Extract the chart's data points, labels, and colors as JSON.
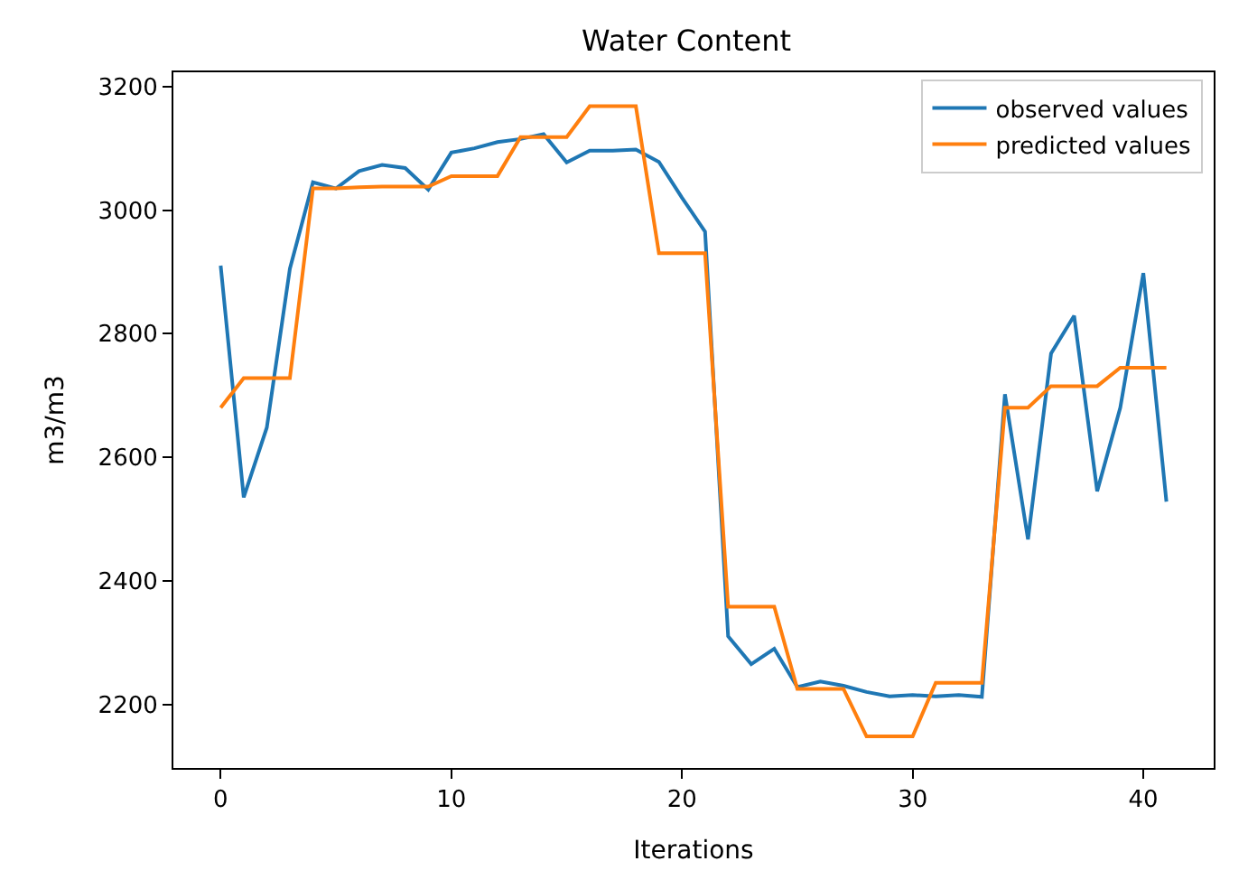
{
  "chart_data": {
    "type": "line",
    "title": "Water Content",
    "xlabel": "Iterations",
    "ylabel": "m3/m3",
    "x": [
      0,
      1,
      2,
      3,
      4,
      5,
      6,
      7,
      8,
      9,
      10,
      11,
      12,
      13,
      14,
      15,
      16,
      17,
      18,
      19,
      20,
      21,
      22,
      23,
      24,
      25,
      26,
      27,
      28,
      29,
      30,
      31,
      32,
      33,
      34,
      35,
      36,
      37,
      38,
      39,
      40,
      41
    ],
    "series": [
      {
        "name": "observed values",
        "color": "#1f77b4",
        "values": [
          2910,
          2535,
          2648,
          2905,
          3045,
          3035,
          3063,
          3073,
          3068,
          3033,
          3093,
          3100,
          3110,
          3115,
          3123,
          3077,
          3096,
          3096,
          3098,
          3078,
          3020,
          2965,
          2310,
          2265,
          2290,
          2228,
          2237,
          2230,
          2220,
          2213,
          2215,
          2213,
          2215,
          2212,
          2702,
          2467,
          2768,
          2829,
          2545,
          2680,
          2898,
          2528
        ]
      },
      {
        "name": "predicted values",
        "color": "#ff7f0e",
        "values": [
          2680,
          2728,
          2728,
          2728,
          3035,
          3035,
          3037,
          3038,
          3038,
          3038,
          3055,
          3055,
          3055,
          3118,
          3118,
          3118,
          3168,
          3168,
          3168,
          2930,
          2930,
          2930,
          2358,
          2358,
          2358,
          2225,
          2225,
          2225,
          2148,
          2148,
          2148,
          2235,
          2235,
          2235,
          2680,
          2680,
          2715,
          2715,
          2715,
          2745,
          2745,
          2745
        ]
      }
    ],
    "xlim": [
      -2.05,
      43.05
    ],
    "xticks": [
      0,
      10,
      20,
      30,
      40
    ],
    "ylim": [
      2097,
      3223
    ],
    "yticks": [
      2200,
      2400,
      2600,
      2800,
      3000,
      3200
    ],
    "legend": "top right",
    "marker": "none",
    "line_style": "solid"
  }
}
